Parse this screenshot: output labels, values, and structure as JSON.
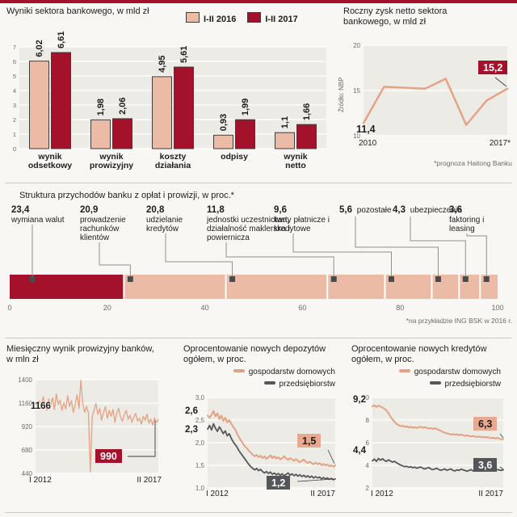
{
  "colors": {
    "accent_dark": "#a3112a",
    "accent_light": "#ecbba6",
    "accent_line": "#e5a183",
    "series_gray": "#55565a",
    "plot_bg": "#ecebe5",
    "grid": "#ffffff",
    "text": "#1d1d1b",
    "muted": "#6b6b68",
    "page_bg": "#f9f7f4"
  },
  "chart_data": [
    {
      "id": "sector-results",
      "type": "bar",
      "title": "Wyniki sektora bankowego, w mld zł",
      "categories": [
        "wynik odsetkowy",
        "wynik prowizyjny",
        "koszty działania",
        "odpisy",
        "wynik netto"
      ],
      "series": [
        {
          "name": "I-II 2016",
          "values": [
            6.02,
            1.98,
            4.95,
            0.93,
            1.1
          ],
          "labels": [
            "6,02",
            "1,98",
            "4,95",
            "0,93",
            "1,1"
          ],
          "color": "salmon"
        },
        {
          "name": "I-II 2017",
          "values": [
            6.61,
            2.06,
            5.61,
            1.99,
            1.66
          ],
          "labels": [
            "6,61",
            "2,06",
            "5,61",
            "1,99",
            "1,66"
          ],
          "color": "dark_red"
        }
      ],
      "ylim": [
        0,
        7
      ],
      "yticks": [
        0,
        1,
        2,
        3,
        4,
        5,
        6,
        7
      ]
    },
    {
      "id": "annual-net-profit",
      "type": "line",
      "title": "Roczny zysk netto sektora bankowego, w mld zł",
      "source": "Źródło: NBP",
      "x": [
        2010,
        2011,
        2012,
        2013,
        2014,
        2015,
        2016,
        2017
      ],
      "values": [
        11.4,
        15.4,
        15.3,
        15.2,
        16.3,
        11.2,
        13.9,
        15.2
      ],
      "ylim": [
        10,
        20
      ],
      "yticks": [
        20,
        15,
        10
      ],
      "xtick_labels": [
        "2010",
        "2017*"
      ],
      "start_label": "11,4",
      "end_label": "15,2",
      "footnote": "*prognoza Haitong Banku"
    },
    {
      "id": "fee-income-structure",
      "type": "stacked-bar",
      "title": "Struktura przychodów banku z opłat i prowizji, w proc.*",
      "segments": [
        {
          "value": 23.4,
          "label_value": "23,4",
          "label": "wymiana walut",
          "color": "dark_red"
        },
        {
          "value": 20.9,
          "label_value": "20,9",
          "label": "prowadzenie rachunków klientów",
          "color": "salmon"
        },
        {
          "value": 20.8,
          "label_value": "20,8",
          "label": "udzielanie kredytów",
          "color": "salmon"
        },
        {
          "value": 11.8,
          "label_value": "11,8",
          "label": "jednostki uczestnictwa, działalność maklerska i powiernicza",
          "color": "salmon"
        },
        {
          "value": 9.6,
          "label_value": "9,6",
          "label": "karty płatnicze i kredytowe",
          "color": "salmon"
        },
        {
          "value": 5.6,
          "label_value": "5,6",
          "label": "pozostałe",
          "color": "salmon"
        },
        {
          "value": 4.3,
          "label_value": "4,3",
          "label": "ubezpieczenia",
          "color": "salmon"
        },
        {
          "value": 3.6,
          "label_value": "3,6",
          "label": "faktoring i leasing",
          "color": "salmon"
        }
      ],
      "xticks": [
        0,
        20,
        40,
        60,
        80,
        100
      ],
      "footnote": "*na przykładzie ING BSK w 2016 r."
    },
    {
      "id": "monthly-fee-result",
      "type": "line",
      "title": "Miesięczny wynik prowizyjny banków, w mln zł",
      "values": [
        1166,
        1120,
        1185,
        1105,
        1225,
        1150,
        1085,
        1205,
        1130,
        1215,
        1095,
        1255,
        1145,
        1190,
        1085,
        1165,
        1100,
        1235,
        1125,
        1185,
        1065,
        1145,
        1245,
        1105,
        1395,
        1155,
        1065,
        1125,
        1060,
        455,
        1025,
        1085,
        1155,
        1045,
        1105,
        985,
        1065,
        1125,
        1005,
        1085,
        1025,
        1095,
        965,
        1055,
        1105,
        1015,
        975,
        1045,
        1085,
        995,
        1035,
        965,
        1015,
        1055,
        975,
        1005,
        945,
        1025,
        985,
        1045,
        955,
        995,
        935,
        1005,
        965,
        990
      ],
      "ylim": [
        440,
        1400
      ],
      "yticks": [
        1400,
        1160,
        920,
        680,
        440
      ],
      "ytick_labels": [
        "1400",
        "1160",
        "920",
        "680",
        "440"
      ],
      "xtick_labels": [
        "I 2012",
        "II 2017"
      ],
      "start_label": "1166",
      "end_label": "990"
    },
    {
      "id": "new-deposit-rates",
      "type": "line",
      "title": "Oprocentowanie nowych depozytów ogółem, w proc.",
      "series": [
        {
          "name": "gospodarstw domowych",
          "color": "salmon",
          "start_label": "2,6",
          "end_label": "1,5",
          "values": [
            2.6,
            2.55,
            2.62,
            2.7,
            2.58,
            2.65,
            2.52,
            2.6,
            2.48,
            2.55,
            2.45,
            2.5,
            2.42,
            2.35,
            2.3,
            2.2,
            2.12,
            2.05,
            1.98,
            1.92,
            1.88,
            1.82,
            1.78,
            1.73,
            1.7,
            1.73,
            1.68,
            1.71,
            1.66,
            1.7,
            1.64,
            1.68,
            1.72,
            1.66,
            1.7,
            1.65,
            1.68,
            1.63,
            1.66,
            1.7,
            1.65,
            1.62,
            1.66,
            1.63,
            1.6,
            1.64,
            1.6,
            1.57,
            1.6,
            1.63,
            1.58,
            1.55,
            1.58,
            1.55,
            1.52,
            1.56,
            1.52,
            1.55,
            1.5,
            1.53,
            1.5,
            1.52,
            1.48,
            1.5,
            1.47,
            1.5
          ]
        },
        {
          "name": "przedsiębiorstw",
          "color": "gray",
          "start_label": "2,3",
          "end_label": "1,2",
          "values": [
            2.3,
            2.38,
            2.28,
            2.42,
            2.32,
            2.25,
            2.35,
            2.28,
            2.2,
            2.26,
            2.15,
            2.2,
            2.1,
            2.02,
            1.96,
            1.9,
            1.82,
            1.76,
            1.7,
            1.64,
            1.58,
            1.52,
            1.47,
            1.43,
            1.4,
            1.43,
            1.38,
            1.41,
            1.36,
            1.33,
            1.36,
            1.32,
            1.35,
            1.3,
            1.33,
            1.29,
            1.32,
            1.28,
            1.31,
            1.27,
            1.3,
            1.33,
            1.28,
            1.31,
            1.27,
            1.3,
            1.26,
            1.29,
            1.25,
            1.28,
            1.24,
            1.27,
            1.23,
            1.26,
            1.22,
            1.25,
            1.22,
            1.24,
            1.2,
            1.23,
            1.2,
            1.22,
            1.19,
            1.21,
            1.18,
            1.2
          ]
        }
      ],
      "ylim": [
        1.0,
        3.0
      ],
      "yticks": [
        3.0,
        2.5,
        2.0,
        1.5,
        1.0
      ],
      "ytick_labels": [
        "3,0",
        "2,5",
        "2,0",
        "1,5",
        "1,0"
      ],
      "xtick_labels": [
        "I 2012",
        "II 2017"
      ]
    },
    {
      "id": "new-credit-rates",
      "type": "line",
      "title": "Oprocentowanie nowych kredytów ogółem, w proc.",
      "series": [
        {
          "name": "gospodarstw domowych",
          "color": "salmon",
          "start_label": "9,2",
          "end_label": "6,3",
          "values": [
            9.2,
            9.3,
            9.15,
            9.28,
            9.2,
            9.1,
            9.0,
            8.85,
            8.6,
            8.3,
            8.05,
            7.85,
            7.65,
            7.55,
            7.45,
            7.5,
            7.4,
            7.45,
            7.35,
            7.4,
            7.32,
            7.38,
            7.3,
            7.35,
            7.42,
            7.32,
            7.38,
            7.3,
            7.25,
            7.3,
            7.2,
            7.28,
            7.2,
            7.12,
            7.05,
            6.95,
            6.88,
            6.82,
            6.78,
            6.72,
            6.76,
            6.7,
            6.74,
            6.68,
            6.72,
            6.66,
            6.6,
            6.65,
            6.6,
            6.55,
            6.6,
            6.54,
            6.5,
            6.55,
            6.48,
            6.52,
            6.46,
            6.5,
            6.44,
            6.4,
            6.44,
            6.38,
            6.42,
            6.35,
            6.32,
            6.3
          ]
        },
        {
          "name": "przedsiębiorstw",
          "color": "gray",
          "start_label": "4,4",
          "end_label": "3,6",
          "values": [
            4.4,
            4.55,
            4.35,
            4.6,
            4.45,
            4.58,
            4.42,
            4.35,
            4.48,
            4.38,
            4.28,
            4.35,
            4.22,
            4.12,
            4.02,
            3.95,
            3.88,
            3.92,
            3.82,
            3.88,
            3.78,
            3.84,
            3.74,
            3.8,
            3.85,
            3.74,
            3.68,
            3.74,
            3.8,
            3.68,
            3.62,
            3.68,
            3.74,
            3.62,
            3.56,
            3.62,
            3.68,
            3.56,
            3.62,
            3.68,
            3.56,
            3.5,
            3.6,
            3.54,
            3.66,
            3.6,
            3.54,
            3.48,
            3.54,
            3.62,
            3.5,
            3.56,
            3.62,
            3.54,
            3.48,
            3.56,
            3.62,
            3.54,
            3.6,
            3.54,
            3.5,
            3.56,
            3.62,
            3.58,
            3.55,
            3.6
          ]
        }
      ],
      "ylim": [
        2,
        10
      ],
      "yticks": [
        10,
        8,
        6,
        4,
        2
      ],
      "ytick_labels": [
        "10",
        "8",
        "6",
        "4",
        "2"
      ],
      "xtick_labels": [
        "I 2012",
        "II 2017"
      ]
    }
  ]
}
